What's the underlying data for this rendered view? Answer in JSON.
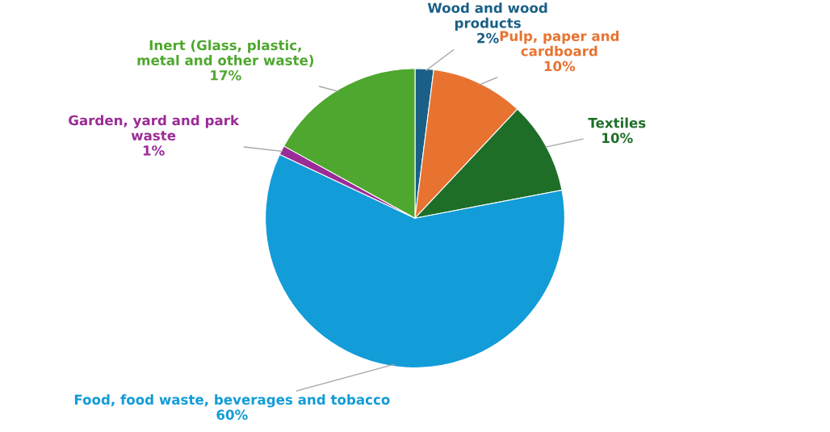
{
  "chart_data": {
    "type": "pie",
    "categories": [
      "Wood and wood products",
      "Pulp, paper and cardboard",
      "Textiles",
      "Food, food waste, beverages and tobacco",
      "Garden, yard and park waste",
      "Inert (Glass, plastic, metal and other waste)"
    ],
    "values": [
      2,
      10,
      10,
      60,
      1,
      17
    ],
    "value_labels": [
      "2%",
      "10%",
      "10%",
      "60%",
      "1%",
      "17%"
    ],
    "colors": [
      "#1a5f86",
      "#e87330",
      "#1e6e28",
      "#129cd8",
      "#9a2c97",
      "#4ea72e"
    ],
    "legend": false
  }
}
